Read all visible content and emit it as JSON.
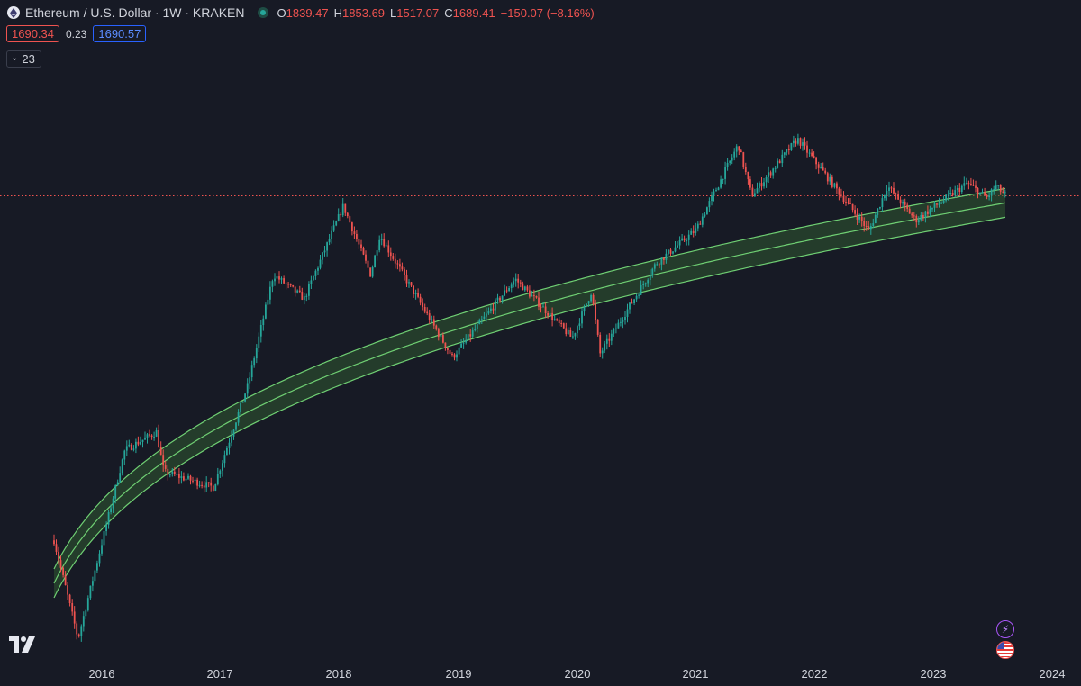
{
  "header": {
    "title": "Ethereum / U.S. Dollar · 1W · KRAKEN",
    "ohlc": [
      {
        "label": "O",
        "value": "1839.47"
      },
      {
        "label": "H",
        "value": "1853.69"
      },
      {
        "label": "L",
        "value": "1517.07"
      },
      {
        "label": "C",
        "value": "1689.41"
      }
    ],
    "change": "−150.07 (−8.16%)"
  },
  "quote": {
    "bid": "1690.34",
    "spread": "0.23",
    "ask": "1690.57"
  },
  "indicators_toggle": {
    "count": "23"
  },
  "colors": {
    "up": "#26a69a",
    "down": "#ef5350",
    "band_fill": "#2f5a32",
    "band_line": "#6fcf73",
    "background": "#171a25",
    "price_line": "#ef5350"
  },
  "icons": {
    "logo": "tradingview-logo-icon",
    "flash": "lightning-icon",
    "region": "us-flag-icon"
  },
  "chart_data": {
    "type": "candlestick",
    "symbol": "Ethereum / U.S. Dollar",
    "interval": "1W",
    "exchange": "KRAKEN",
    "x_ticks": [
      "2016",
      "2017",
      "2018",
      "2019",
      "2020",
      "2021",
      "2022",
      "2023",
      "2024"
    ],
    "x_range": [
      "2015-08",
      "2024-04"
    ],
    "y_scale": "log",
    "last_price": 1690.34,
    "series_keypoints": [
      {
        "date": "2015-08-07",
        "price": 2.8
      },
      {
        "date": "2015-10-20",
        "price": 0.45
      },
      {
        "date": "2016-03-12",
        "price": 15.0
      },
      {
        "date": "2016-06-17",
        "price": 21.0
      },
      {
        "date": "2016-07-10",
        "price": 10.0
      },
      {
        "date": "2016-12-10",
        "price": 7.5
      },
      {
        "date": "2017-03-25",
        "price": 50.0
      },
      {
        "date": "2017-06-12",
        "price": 390
      },
      {
        "date": "2017-09-15",
        "price": 250
      },
      {
        "date": "2018-01-13",
        "price": 1400
      },
      {
        "date": "2018-04-07",
        "price": 390
      },
      {
        "date": "2018-05-05",
        "price": 810
      },
      {
        "date": "2018-12-15",
        "price": 84
      },
      {
        "date": "2019-06-26",
        "price": 360
      },
      {
        "date": "2019-12-18",
        "price": 120
      },
      {
        "date": "2020-02-15",
        "price": 285
      },
      {
        "date": "2020-03-13",
        "price": 90
      },
      {
        "date": "2020-09-01",
        "price": 480
      },
      {
        "date": "2021-01-02",
        "price": 900
      },
      {
        "date": "2021-05-12",
        "price": 4380
      },
      {
        "date": "2021-06-22",
        "price": 1700
      },
      {
        "date": "2021-11-10",
        "price": 4870
      },
      {
        "date": "2022-06-18",
        "price": 880
      },
      {
        "date": "2022-08-14",
        "price": 2030
      },
      {
        "date": "2022-11-09",
        "price": 1075
      },
      {
        "date": "2023-04-16",
        "price": 2140
      },
      {
        "date": "2023-06-15",
        "price": 1625
      },
      {
        "date": "2023-07-13",
        "price": 2020
      },
      {
        "date": "2023-08-14",
        "price": 1690
      }
    ],
    "regression_band": {
      "style": "log-curve channel with upper, middle and lower lines",
      "fill": "green"
    },
    "grid": false
  }
}
